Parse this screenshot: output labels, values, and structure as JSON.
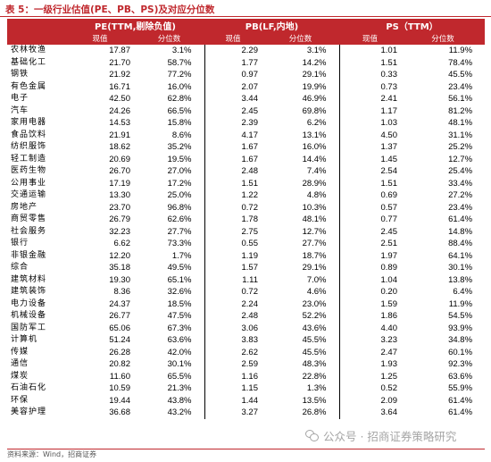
{
  "caption": "表 5：一级行业估值(PE、PB、PS)及对应分位数",
  "header": {
    "pe_title": "PE(TTM,剔除负值)",
    "pb_title": "PB(LF,内地)",
    "ps_title": "PS（TTM）",
    "current_label": "现值",
    "percentile_label": "分位数"
  },
  "rows": [
    {
      "industry": "农林牧渔",
      "pe": "17.87",
      "pe_pct": "3.1%",
      "pb": "2.29",
      "pb_pct": "3.1%",
      "ps": "1.01",
      "ps_pct": "11.9%"
    },
    {
      "industry": "基础化工",
      "pe": "21.70",
      "pe_pct": "58.7%",
      "pb": "1.77",
      "pb_pct": "14.2%",
      "ps": "1.51",
      "ps_pct": "78.4%"
    },
    {
      "industry": "钢铁",
      "pe": "21.92",
      "pe_pct": "77.2%",
      "pb": "0.97",
      "pb_pct": "29.1%",
      "ps": "0.33",
      "ps_pct": "45.5%"
    },
    {
      "industry": "有色金属",
      "pe": "16.71",
      "pe_pct": "16.0%",
      "pb": "2.07",
      "pb_pct": "19.9%",
      "ps": "0.73",
      "ps_pct": "23.4%"
    },
    {
      "industry": "电子",
      "pe": "42.50",
      "pe_pct": "62.8%",
      "pb": "3.44",
      "pb_pct": "46.9%",
      "ps": "2.41",
      "ps_pct": "56.1%"
    },
    {
      "industry": "汽车",
      "pe": "24.26",
      "pe_pct": "66.5%",
      "pb": "2.45",
      "pb_pct": "69.8%",
      "ps": "1.17",
      "ps_pct": "81.2%"
    },
    {
      "industry": "家用电器",
      "pe": "14.53",
      "pe_pct": "15.8%",
      "pb": "2.39",
      "pb_pct": "6.2%",
      "ps": "1.03",
      "ps_pct": "48.1%"
    },
    {
      "industry": "食品饮料",
      "pe": "21.91",
      "pe_pct": "8.6%",
      "pb": "4.17",
      "pb_pct": "13.1%",
      "ps": "4.50",
      "ps_pct": "31.1%"
    },
    {
      "industry": "纺织服饰",
      "pe": "18.62",
      "pe_pct": "35.2%",
      "pb": "1.67",
      "pb_pct": "16.0%",
      "ps": "1.37",
      "ps_pct": "25.2%"
    },
    {
      "industry": "轻工制造",
      "pe": "20.69",
      "pe_pct": "19.5%",
      "pb": "1.67",
      "pb_pct": "14.4%",
      "ps": "1.45",
      "ps_pct": "12.7%"
    },
    {
      "industry": "医药生物",
      "pe": "26.70",
      "pe_pct": "27.0%",
      "pb": "2.48",
      "pb_pct": "7.4%",
      "ps": "2.54",
      "ps_pct": "25.4%"
    },
    {
      "industry": "公用事业",
      "pe": "17.19",
      "pe_pct": "17.2%",
      "pb": "1.51",
      "pb_pct": "28.9%",
      "ps": "1.51",
      "ps_pct": "33.4%"
    },
    {
      "industry": "交通运输",
      "pe": "13.30",
      "pe_pct": "25.0%",
      "pb": "1.22",
      "pb_pct": "4.8%",
      "ps": "0.69",
      "ps_pct": "27.2%"
    },
    {
      "industry": "房地产",
      "pe": "23.70",
      "pe_pct": "96.8%",
      "pb": "0.72",
      "pb_pct": "10.3%",
      "ps": "0.57",
      "ps_pct": "23.4%"
    },
    {
      "industry": "商贸零售",
      "pe": "26.79",
      "pe_pct": "62.6%",
      "pb": "1.78",
      "pb_pct": "48.1%",
      "ps": "0.77",
      "ps_pct": "61.4%"
    },
    {
      "industry": "社会服务",
      "pe": "32.23",
      "pe_pct": "27.7%",
      "pb": "2.75",
      "pb_pct": "12.7%",
      "ps": "2.45",
      "ps_pct": "14.8%"
    },
    {
      "industry": "银行",
      "pe": "6.62",
      "pe_pct": "73.3%",
      "pb": "0.55",
      "pb_pct": "27.7%",
      "ps": "2.51",
      "ps_pct": "88.4%"
    },
    {
      "industry": "非银金融",
      "pe": "12.20",
      "pe_pct": "1.7%",
      "pb": "1.19",
      "pb_pct": "18.7%",
      "ps": "1.97",
      "ps_pct": "64.1%"
    },
    {
      "industry": "综合",
      "pe": "35.18",
      "pe_pct": "49.5%",
      "pb": "1.57",
      "pb_pct": "29.1%",
      "ps": "0.89",
      "ps_pct": "30.1%"
    },
    {
      "industry": "建筑材料",
      "pe": "19.30",
      "pe_pct": "65.1%",
      "pb": "1.11",
      "pb_pct": "7.0%",
      "ps": "1.04",
      "ps_pct": "13.8%"
    },
    {
      "industry": "建筑装饰",
      "pe": "8.36",
      "pe_pct": "32.6%",
      "pb": "0.72",
      "pb_pct": "4.6%",
      "ps": "0.20",
      "ps_pct": "6.4%"
    },
    {
      "industry": "电力设备",
      "pe": "24.37",
      "pe_pct": "18.5%",
      "pb": "2.24",
      "pb_pct": "23.0%",
      "ps": "1.59",
      "ps_pct": "11.9%"
    },
    {
      "industry": "机械设备",
      "pe": "26.77",
      "pe_pct": "47.5%",
      "pb": "2.48",
      "pb_pct": "52.2%",
      "ps": "1.86",
      "ps_pct": "54.5%"
    },
    {
      "industry": "国防军工",
      "pe": "65.06",
      "pe_pct": "67.3%",
      "pb": "3.06",
      "pb_pct": "43.6%",
      "ps": "4.40",
      "ps_pct": "93.9%"
    },
    {
      "industry": "计算机",
      "pe": "51.24",
      "pe_pct": "63.6%",
      "pb": "3.83",
      "pb_pct": "45.5%",
      "ps": "3.23",
      "ps_pct": "34.8%"
    },
    {
      "industry": "传媒",
      "pe": "26.28",
      "pe_pct": "42.0%",
      "pb": "2.62",
      "pb_pct": "45.5%",
      "ps": "2.47",
      "ps_pct": "60.1%"
    },
    {
      "industry": "通信",
      "pe": "20.82",
      "pe_pct": "30.1%",
      "pb": "2.59",
      "pb_pct": "48.3%",
      "ps": "1.93",
      "ps_pct": "92.3%"
    },
    {
      "industry": "煤炭",
      "pe": "11.60",
      "pe_pct": "65.5%",
      "pb": "1.16",
      "pb_pct": "22.8%",
      "ps": "1.25",
      "ps_pct": "63.6%"
    },
    {
      "industry": "石油石化",
      "pe": "10.59",
      "pe_pct": "21.3%",
      "pb": "1.15",
      "pb_pct": "1.3%",
      "ps": "0.52",
      "ps_pct": "55.9%"
    },
    {
      "industry": "环保",
      "pe": "19.44",
      "pe_pct": "43.8%",
      "pb": "1.44",
      "pb_pct": "13.5%",
      "ps": "2.09",
      "ps_pct": "61.4%"
    },
    {
      "industry": "美容护理",
      "pe": "36.68",
      "pe_pct": "43.2%",
      "pb": "3.27",
      "pb_pct": "26.8%",
      "ps": "3.64",
      "ps_pct": "61.4%"
    }
  ],
  "source": "资料来源：Wind，招商证券",
  "watermark": "公众号 · 招商证券策略研究",
  "colors": {
    "accent": "#c0282d",
    "header_text": "#ffffff"
  },
  "icons": {
    "watermark": "wechat-icon"
  }
}
